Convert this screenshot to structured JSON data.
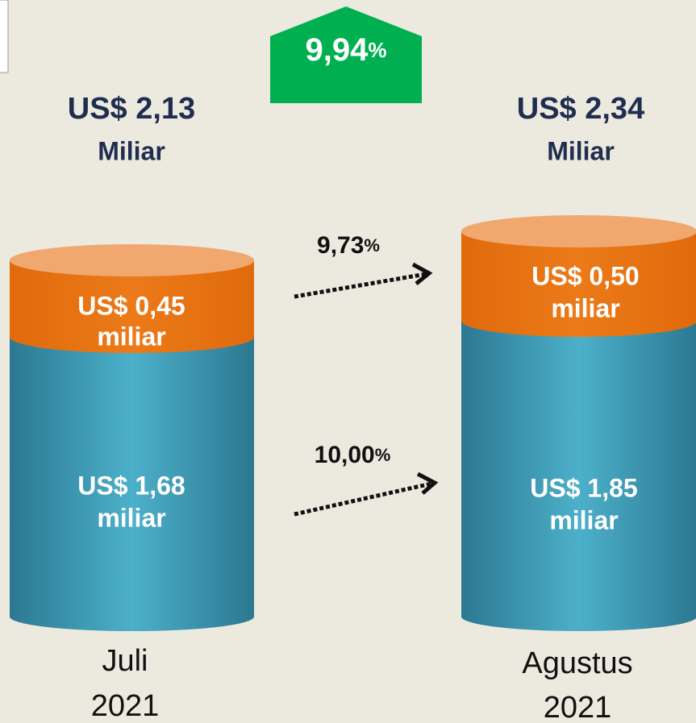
{
  "growth": {
    "value": "9,94",
    "unit": "%"
  },
  "columns": [
    {
      "total": "US$ 2,13",
      "total_unit": "Miliar",
      "top": {
        "amount": "US$ 0,45",
        "unit": "miliar"
      },
      "bottom": {
        "amount": "US$ 1,68",
        "unit": "miliar"
      },
      "period": {
        "month": "Juli",
        "year": "2021"
      }
    },
    {
      "total": "US$ 2,34",
      "total_unit": "Miliar",
      "top": {
        "amount": "US$ 0,50",
        "unit": "miliar"
      },
      "bottom": {
        "amount": "US$ 1,85",
        "unit": "miliar"
      },
      "period": {
        "month": "Agustus",
        "year": "2021"
      }
    }
  ],
  "arrows": [
    {
      "value": "9,73",
      "unit": "%"
    },
    {
      "value": "10,00",
      "unit": "%"
    }
  ]
}
